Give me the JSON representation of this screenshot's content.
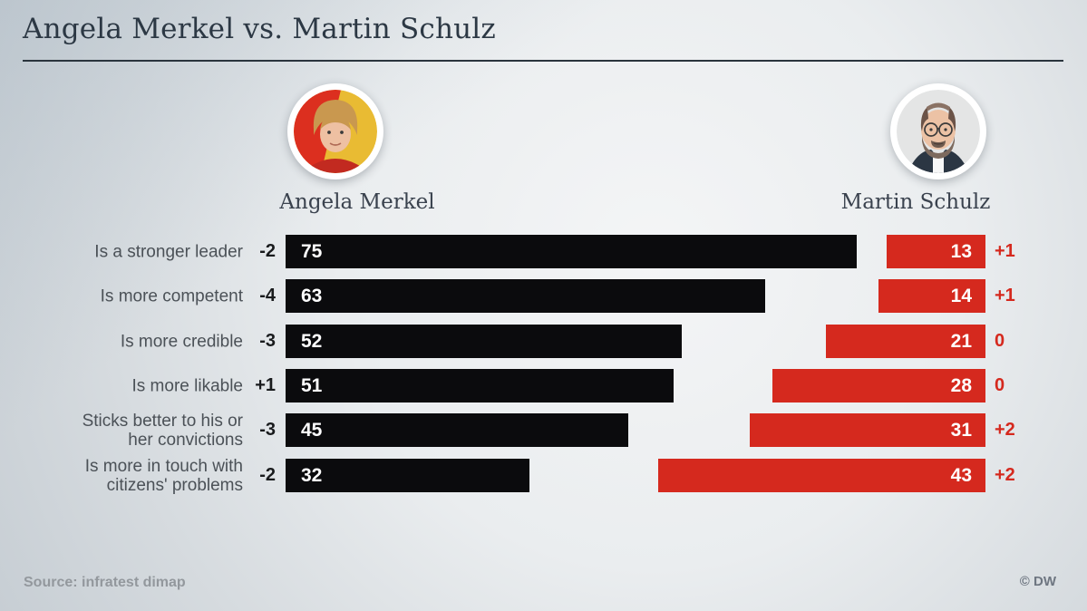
{
  "title": "Angela Merkel vs. Martin Schulz",
  "persons": {
    "left": "Angela Merkel",
    "right": "Martin Schulz"
  },
  "footer": {
    "source": "Source: infratest dimap",
    "copyright": "© DW"
  },
  "colors": {
    "merkel_bar": "#0b0b0d",
    "schulz_bar": "#d5291e",
    "title_text": "#2c3844",
    "label_text": "#4b5157"
  },
  "chart_data": {
    "type": "bar",
    "title": "Angela Merkel vs. Martin Schulz",
    "legend_entries": [
      "Angela Merkel",
      "Martin Schulz"
    ],
    "categories": [
      "Is a stronger leader",
      "Is more competent",
      "Is more credible",
      "Is more likable",
      "Sticks better to his or\nher convictions",
      "Is more in touch with\ncitizens' problems"
    ],
    "series": [
      {
        "name": "Angela Merkel",
        "color": "#0b0b0d",
        "values": [
          75,
          63,
          52,
          51,
          45,
          32
        ],
        "change_labels": [
          "-2",
          "-4",
          "-3",
          "+1",
          "-3",
          "-2"
        ]
      },
      {
        "name": "Martin Schulz",
        "color": "#d5291e",
        "values": [
          13,
          14,
          21,
          28,
          31,
          43
        ],
        "change_labels": [
          "+1",
          "+1",
          "0",
          "0",
          "+2",
          "+2"
        ]
      }
    ],
    "value_range": [
      0,
      75
    ],
    "orientation": "horizontal",
    "grid": false,
    "legend_position": "above-bars"
  }
}
